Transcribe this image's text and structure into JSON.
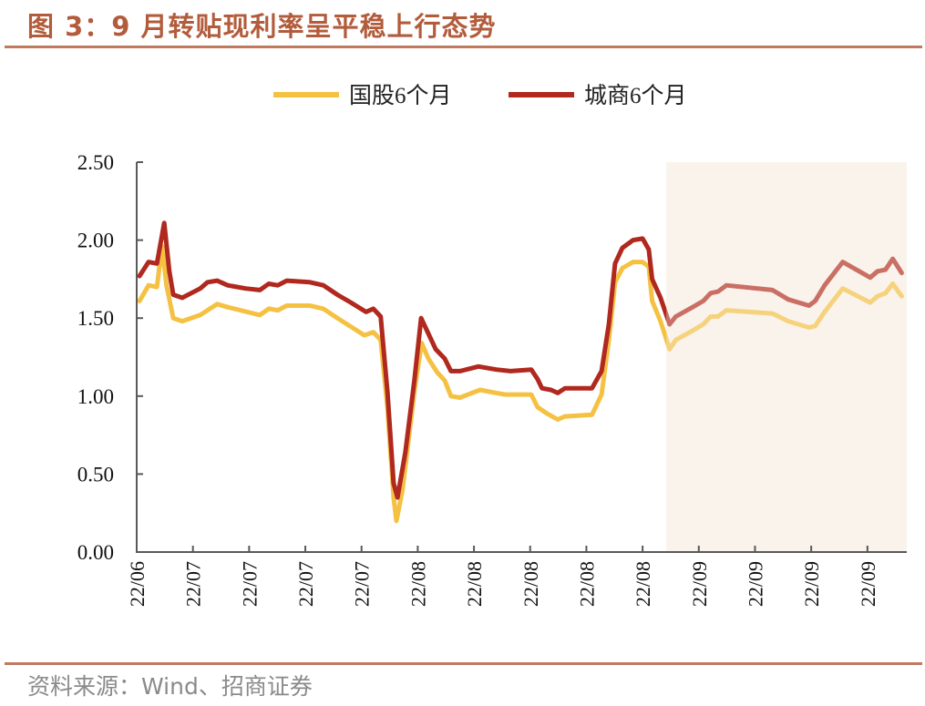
{
  "title": "图 3：9 月转贴现利率呈平稳上行态势",
  "source": "资料来源：Wind、招商证券",
  "chart_data": {
    "type": "line",
    "title": "图 3：9 月转贴现利率呈平稳上行态势",
    "xlabel": "",
    "ylabel": "",
    "ylim": [
      0,
      2.5
    ],
    "yticks": [
      "0.00",
      "0.50",
      "1.00",
      "1.50",
      "2.00",
      "2.50"
    ],
    "ytick_values": [
      0,
      0.5,
      1,
      1.5,
      2,
      2.5
    ],
    "xtick_labels": [
      "22/06",
      "22/07",
      "22/07",
      "22/07",
      "22/07",
      "22/08",
      "22/08",
      "22/08",
      "22/08",
      "22/08",
      "22/09",
      "22/09",
      "22/09",
      "22/09"
    ],
    "xlim": [
      0,
      13.7
    ],
    "grid": false,
    "legend": "top-center",
    "highlight_region": {
      "from": 9.42,
      "to": 13.7,
      "color": "#f9f3ec"
    },
    "series": [
      {
        "name": "国股6个月",
        "color": "#f5c142",
        "x": [
          0.05,
          0.21,
          0.36,
          0.45,
          0.53,
          0.65,
          0.81,
          1.13,
          1.43,
          1.62,
          2.19,
          2.35,
          2.51,
          2.67,
          3.08,
          3.32,
          3.57,
          4.05,
          4.21,
          4.34,
          4.46,
          4.57,
          4.62,
          4.73,
          4.94,
          5.07,
          5.19,
          5.35,
          5.48,
          5.59,
          5.75,
          6.11,
          6.4,
          6.56,
          7.02,
          7.13,
          7.29,
          7.49,
          7.62,
          8.1,
          8.27,
          8.4,
          8.51,
          8.64,
          8.83,
          9.0,
          9.11,
          9.17,
          9.32,
          9.48,
          9.59,
          9.89,
          10.08,
          10.21,
          10.34,
          10.49,
          11.31,
          11.59,
          11.96,
          12.07,
          12.24,
          12.56,
          13.05,
          13.18,
          13.32,
          13.45,
          13.61
        ],
        "values": [
          1.61,
          1.71,
          1.7,
          1.96,
          1.71,
          1.5,
          1.48,
          1.52,
          1.59,
          1.57,
          1.52,
          1.56,
          1.55,
          1.58,
          1.58,
          1.56,
          1.5,
          1.39,
          1.41,
          1.36,
          0.93,
          0.35,
          0.2,
          0.4,
          1.03,
          1.34,
          1.24,
          1.15,
          1.1,
          1.0,
          0.99,
          1.04,
          1.02,
          1.01,
          1.01,
          0.93,
          0.89,
          0.85,
          0.87,
          0.88,
          1.01,
          1.36,
          1.73,
          1.82,
          1.86,
          1.86,
          1.83,
          1.61,
          1.48,
          1.3,
          1.36,
          1.42,
          1.46,
          1.51,
          1.51,
          1.55,
          1.53,
          1.48,
          1.44,
          1.45,
          1.54,
          1.69,
          1.6,
          1.64,
          1.66,
          1.72,
          1.64
        ]
      },
      {
        "name": "城商6个月",
        "color": "#b0281e",
        "x": [
          0.05,
          0.21,
          0.36,
          0.49,
          0.58,
          0.65,
          0.81,
          0.97,
          1.13,
          1.26,
          1.43,
          1.62,
          1.94,
          2.19,
          2.35,
          2.51,
          2.67,
          3.08,
          3.32,
          3.57,
          3.81,
          4.08,
          4.21,
          4.34,
          4.46,
          4.57,
          4.64,
          4.78,
          4.94,
          5.06,
          5.19,
          5.32,
          5.48,
          5.59,
          5.75,
          6.08,
          6.4,
          6.65,
          7.02,
          7.13,
          7.21,
          7.37,
          7.49,
          7.62,
          8.1,
          8.27,
          8.4,
          8.51,
          8.64,
          8.83,
          9.0,
          9.11,
          9.17,
          9.32,
          9.48,
          9.59,
          9.89,
          10.08,
          10.21,
          10.34,
          10.49,
          11.31,
          11.59,
          11.96,
          12.07,
          12.24,
          12.56,
          13.05,
          13.18,
          13.32,
          13.45,
          13.61
        ],
        "values": [
          1.77,
          1.86,
          1.85,
          2.11,
          1.8,
          1.65,
          1.63,
          1.66,
          1.69,
          1.73,
          1.74,
          1.71,
          1.69,
          1.68,
          1.72,
          1.71,
          1.74,
          1.73,
          1.71,
          1.65,
          1.6,
          1.54,
          1.56,
          1.51,
          1.03,
          0.44,
          0.35,
          0.64,
          1.1,
          1.5,
          1.4,
          1.3,
          1.24,
          1.16,
          1.16,
          1.19,
          1.17,
          1.16,
          1.17,
          1.11,
          1.05,
          1.04,
          1.02,
          1.05,
          1.05,
          1.16,
          1.46,
          1.85,
          1.95,
          2.0,
          2.01,
          1.94,
          1.75,
          1.63,
          1.46,
          1.51,
          1.57,
          1.61,
          1.66,
          1.67,
          1.71,
          1.68,
          1.62,
          1.58,
          1.61,
          1.71,
          1.86,
          1.76,
          1.8,
          1.81,
          1.88,
          1.79
        ]
      }
    ]
  }
}
